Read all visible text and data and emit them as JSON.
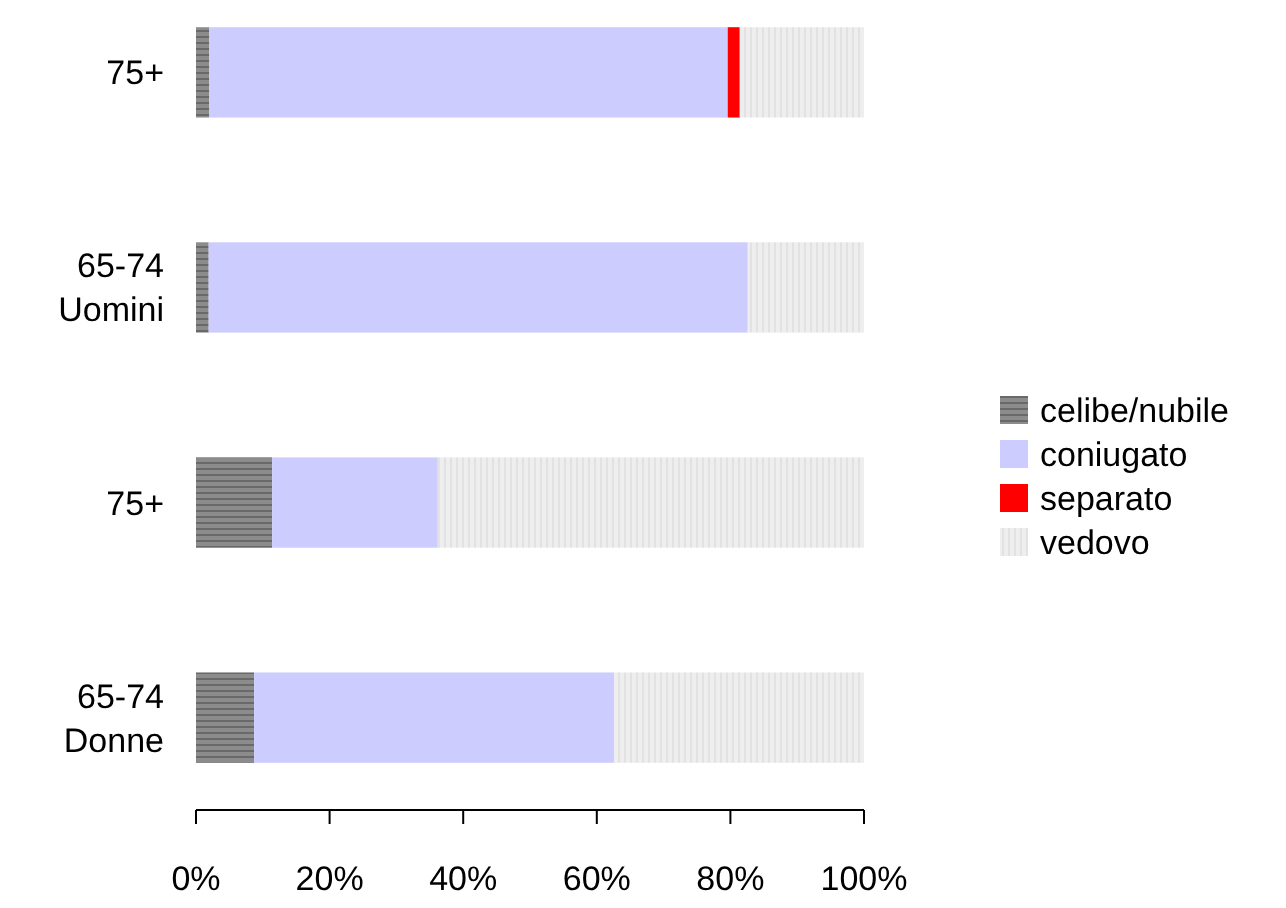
{
  "chart_data": {
    "type": "bar",
    "orientation": "horizontal",
    "stacked": true,
    "categories": [
      "75+",
      "65-74\nUomini",
      "75+",
      "65-74\nDonne"
    ],
    "series": [
      {
        "name": "celibe/nubile",
        "color": "#8c8c8c",
        "values": [
          2.0,
          1.9,
          11.4,
          8.7
        ]
      },
      {
        "name": "coniugato",
        "color": "#ccccff",
        "values": [
          77.6,
          80.7,
          24.8,
          53.9
        ]
      },
      {
        "name": "separato",
        "color": "#ff0000",
        "values": [
          1.8,
          0,
          0,
          0
        ]
      },
      {
        "name": "vedovo",
        "color": "#eeeeee",
        "values": [
          18.6,
          17.4,
          63.8,
          37.4
        ]
      }
    ],
    "xlim": [
      0,
      100
    ],
    "xticks": [
      {
        "value": 0,
        "label": "0%"
      },
      {
        "value": 20,
        "label": "20%"
      },
      {
        "value": 40,
        "label": "40%"
      },
      {
        "value": 60,
        "label": "60%"
      },
      {
        "value": 80,
        "label": "80%"
      },
      {
        "value": 100,
        "label": "100%"
      }
    ],
    "grid": false,
    "legend": "right"
  }
}
